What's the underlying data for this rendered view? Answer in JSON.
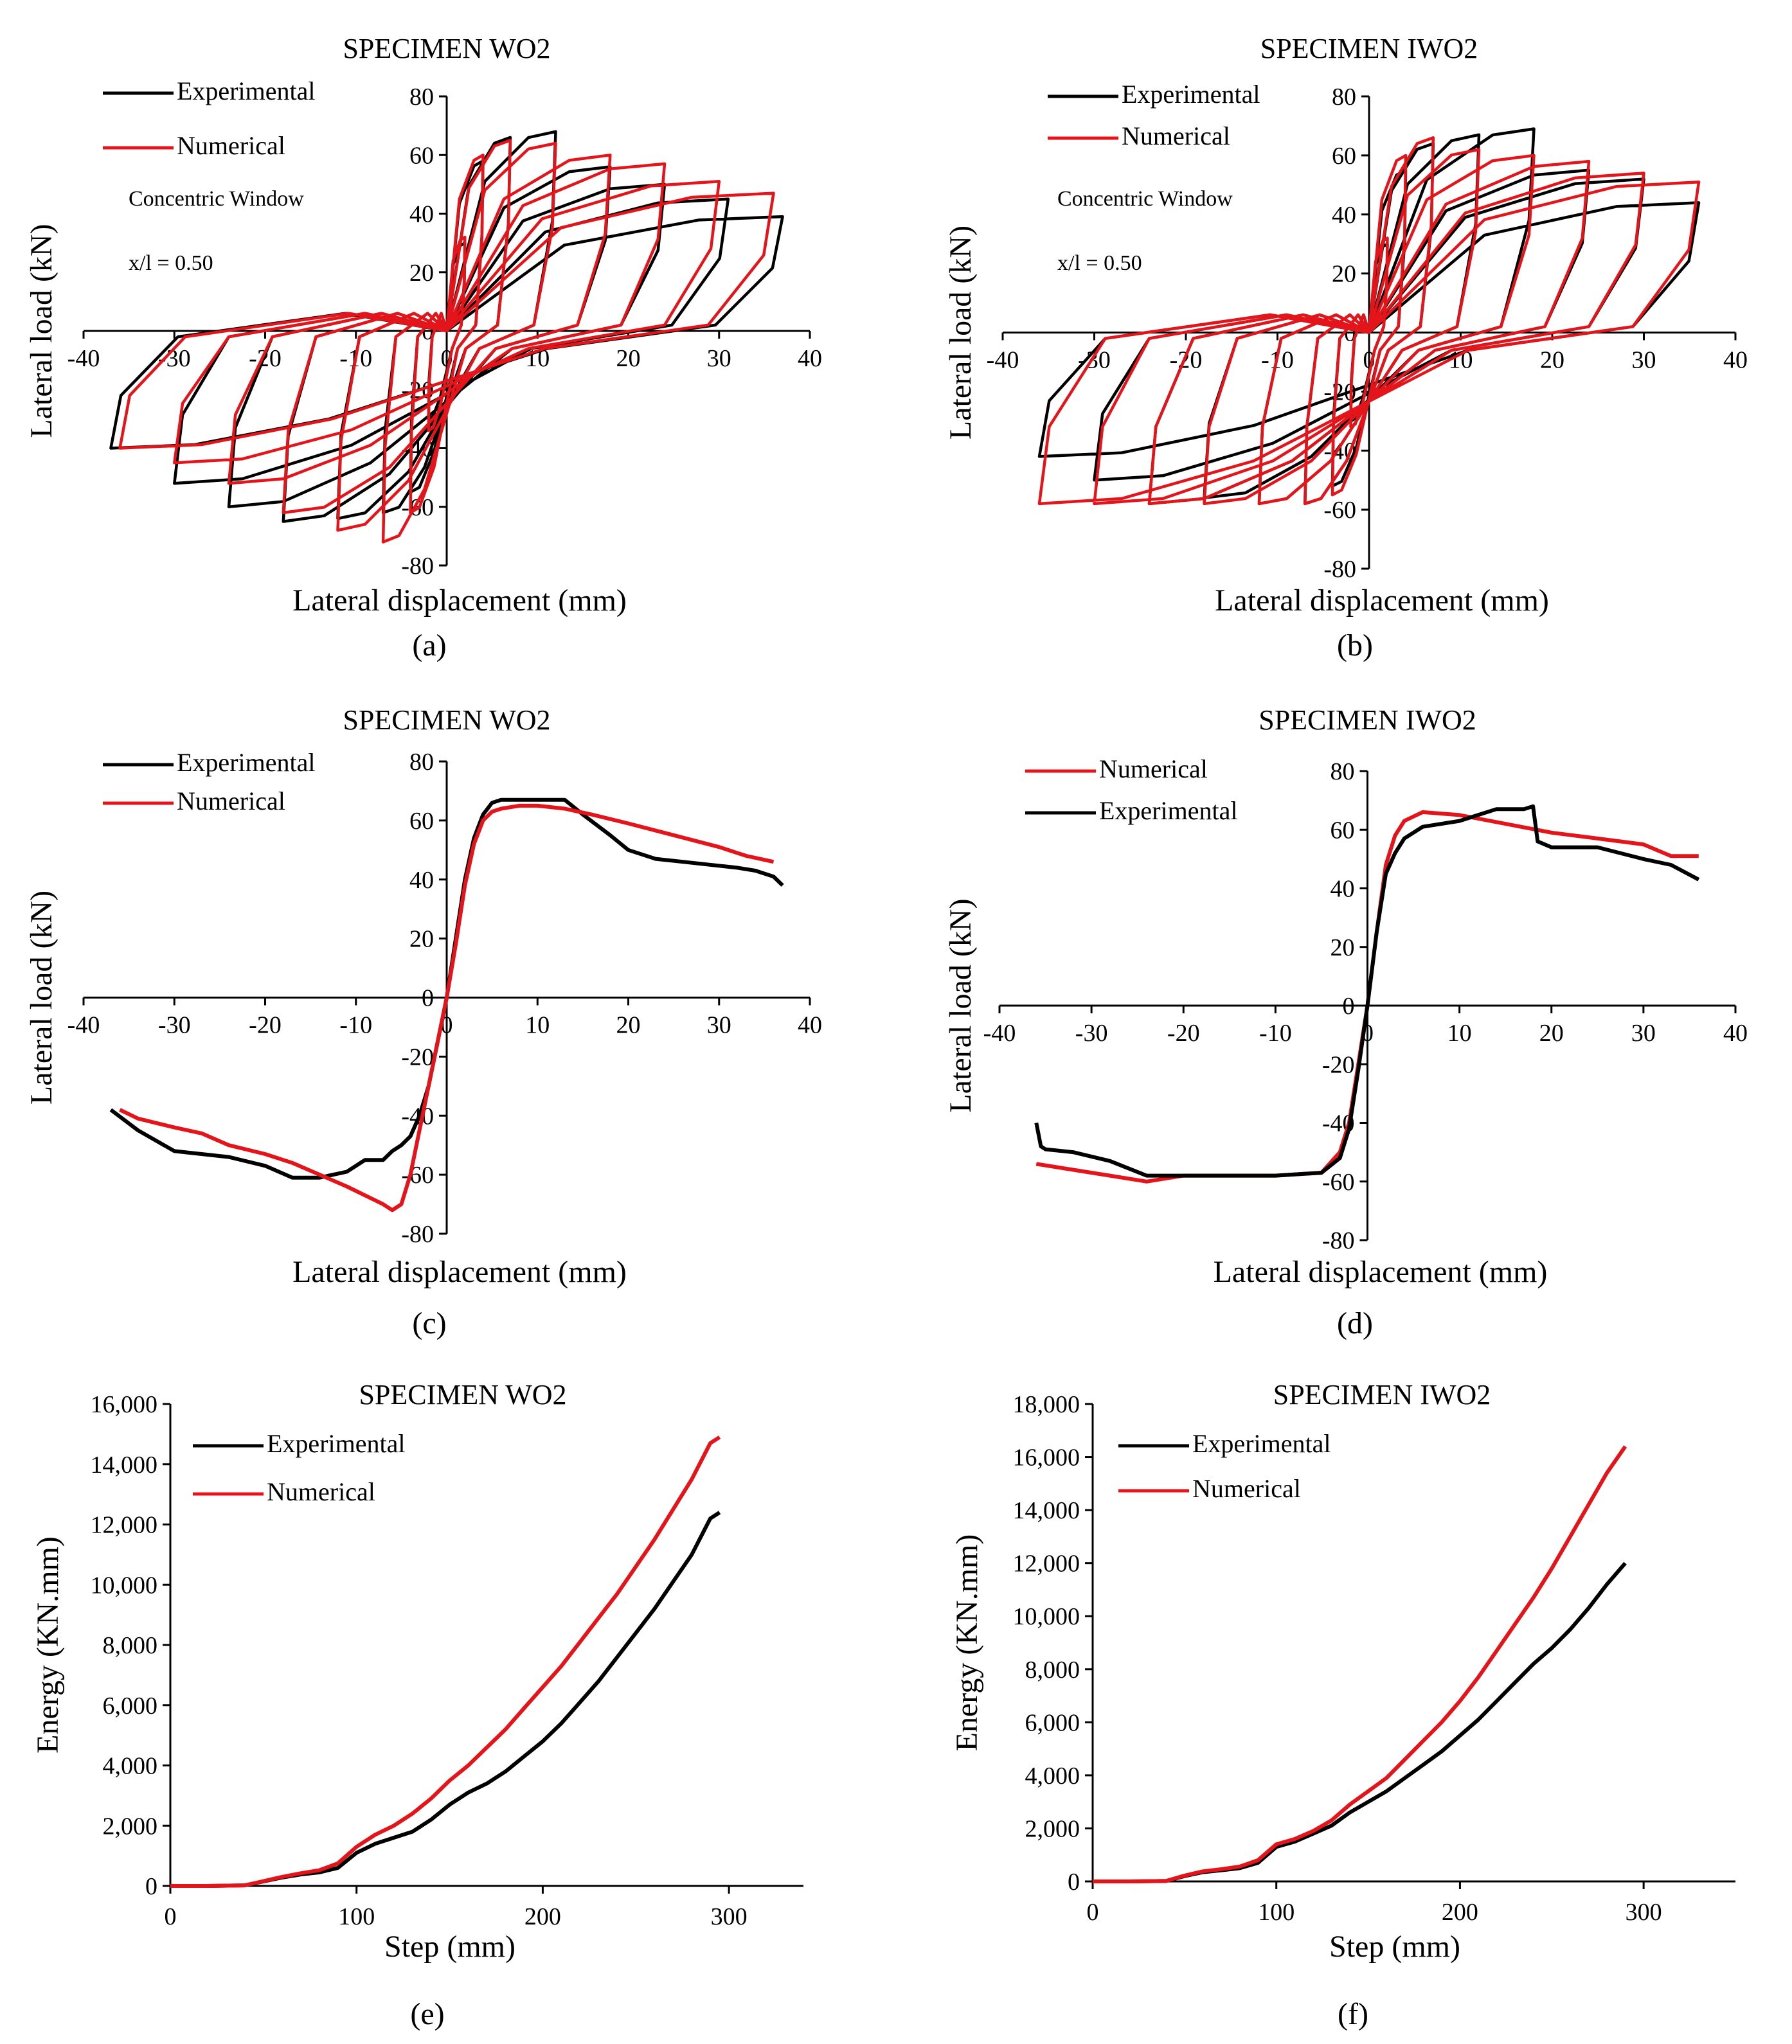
{
  "chart_data": [
    {
      "id": "a",
      "type": "line",
      "panel_label": "(a)",
      "title": "SPECIMEN WO2",
      "xlabel": "Lateral displacement (mm)",
      "ylabel": "Lateral load (kN)",
      "xlim": [
        -40,
        40
      ],
      "ylim": [
        -80,
        80
      ],
      "xticks": [
        -40,
        -30,
        -20,
        -10,
        0,
        10,
        20,
        30,
        40
      ],
      "yticks": [
        -80,
        -60,
        -40,
        -20,
        0,
        20,
        40,
        60,
        80
      ],
      "legend": [
        "Experimental",
        "Numerical"
      ],
      "annotations": [
        "Concentric Window",
        "x/l = 0.50"
      ],
      "series": [
        {
          "name": "Experimental",
          "color": "#000000",
          "kind": "hysteresis",
          "amplitudes_pos": [
            [
              2,
              30
            ],
            [
              4,
              58
            ],
            [
              7,
              66
            ],
            [
              12,
              68
            ],
            [
              18,
              56
            ],
            [
              24,
              50
            ],
            [
              31,
              45
            ],
            [
              37,
              39
            ]
          ],
          "amplitudes_neg": [
            [
              -2,
              -30
            ],
            [
              -4,
              -55
            ],
            [
              -7,
              -62
            ],
            [
              -12,
              -64
            ],
            [
              -18,
              -65
            ],
            [
              -24,
              -60
            ],
            [
              -30,
              -52
            ],
            [
              -37,
              -40
            ]
          ]
        },
        {
          "name": "Numerical",
          "color": "#e4141b",
          "kind": "hysteresis",
          "amplitudes_pos": [
            [
              2,
              32
            ],
            [
              4,
              60
            ],
            [
              7,
              65
            ],
            [
              12,
              64
            ],
            [
              18,
              60
            ],
            [
              24,
              57
            ],
            [
              30,
              51
            ],
            [
              36,
              47
            ]
          ],
          "amplitudes_neg": [
            [
              -2,
              -34
            ],
            [
              -4,
              -62
            ],
            [
              -7,
              -72
            ],
            [
              -12,
              -68
            ],
            [
              -18,
              -62
            ],
            [
              -24,
              -52
            ],
            [
              -30,
              -45
            ],
            [
              -36,
              -40
            ]
          ]
        }
      ]
    },
    {
      "id": "b",
      "type": "line",
      "panel_label": "(b)",
      "title": "SPECIMEN IWO2",
      "xlabel": "Lateral displacement (mm)",
      "ylabel": "Lateral load (kN)",
      "xlim": [
        -40,
        40
      ],
      "ylim": [
        -80,
        80
      ],
      "xticks": [
        -40,
        -30,
        -20,
        -10,
        0,
        10,
        20,
        30,
        40
      ],
      "yticks": [
        -80,
        -60,
        -40,
        -20,
        0,
        20,
        40,
        60,
        80
      ],
      "legend": [
        "Experimental",
        "Numerical"
      ],
      "annotations": [
        "Concentric Window",
        "x/l = 0.50"
      ],
      "series": [
        {
          "name": "Experimental",
          "color": "#000000",
          "kind": "hysteresis",
          "amplitudes_pos": [
            [
              2,
              30
            ],
            [
              4,
              55
            ],
            [
              7,
              64
            ],
            [
              12,
              67
            ],
            [
              18,
              69
            ],
            [
              24,
              55
            ],
            [
              30,
              52
            ],
            [
              36,
              44
            ]
          ],
          "amplitudes_neg": [
            [
              -2,
              -30
            ],
            [
              -4,
              -52
            ],
            [
              -7,
              -58
            ],
            [
              -12,
              -58
            ],
            [
              -18,
              -56
            ],
            [
              -24,
              -58
            ],
            [
              -30,
              -50
            ],
            [
              -36,
              -42
            ]
          ]
        },
        {
          "name": "Numerical",
          "color": "#e4141b",
          "kind": "hysteresis",
          "amplitudes_pos": [
            [
              2,
              32
            ],
            [
              4,
              60
            ],
            [
              7,
              66
            ],
            [
              12,
              62
            ],
            [
              18,
              60
            ],
            [
              24,
              58
            ],
            [
              30,
              54
            ],
            [
              36,
              51
            ]
          ],
          "amplitudes_neg": [
            [
              -2,
              -32
            ],
            [
              -4,
              -55
            ],
            [
              -7,
              -58
            ],
            [
              -12,
              -58
            ],
            [
              -18,
              -58
            ],
            [
              -24,
              -58
            ],
            [
              -30,
              -58
            ],
            [
              -36,
              -58
            ]
          ]
        }
      ]
    },
    {
      "id": "c",
      "type": "line",
      "panel_label": "(c)",
      "title": "SPECIMEN WO2",
      "xlabel": "Lateral displacement (mm)",
      "ylabel": "Lateral load (kN)",
      "xlim": [
        -40,
        40
      ],
      "ylim": [
        -80,
        80
      ],
      "xticks": [
        -40,
        -30,
        -20,
        -10,
        0,
        10,
        20,
        30,
        40
      ],
      "yticks": [
        -80,
        -60,
        -40,
        -20,
        0,
        20,
        40,
        60,
        80
      ],
      "legend": [
        "Experimental",
        "Numerical"
      ],
      "series": [
        {
          "name": "Experimental",
          "color": "#000000",
          "x": [
            -37,
            -34,
            -30,
            -27,
            -24,
            -20,
            -17,
            -14,
            -11,
            -9,
            -7,
            -6,
            -5,
            -4,
            -3,
            -2,
            -1,
            0,
            1,
            2,
            3,
            4,
            5,
            6,
            7,
            8,
            10,
            13,
            15,
            18,
            20,
            23,
            26,
            29,
            32,
            34,
            36,
            37
          ],
          "y": [
            -38,
            -45,
            -52,
            -53,
            -54,
            -57,
            -61,
            -61,
            -59,
            -55,
            -55,
            -52,
            -50,
            -47,
            -40,
            -30,
            -15,
            0,
            20,
            40,
            54,
            62,
            66,
            67,
            67,
            67,
            67,
            67,
            62,
            55,
            50,
            47,
            46,
            45,
            44,
            43,
            41,
            38
          ]
        },
        {
          "name": "Numerical",
          "color": "#e4141b",
          "x": [
            -36,
            -34,
            -30,
            -27,
            -24,
            -20,
            -17,
            -14,
            -11,
            -9,
            -7,
            -6,
            -5,
            -4,
            -3,
            -2,
            -1,
            0,
            1,
            2,
            3,
            4,
            5,
            6,
            8,
            10,
            13,
            16,
            20,
            25,
            30,
            33,
            36
          ],
          "y": [
            -38,
            -41,
            -44,
            -46,
            -50,
            -53,
            -56,
            -60,
            -64,
            -67,
            -70,
            -72,
            -70,
            -60,
            -45,
            -30,
            -15,
            0,
            18,
            38,
            52,
            60,
            63,
            64,
            65,
            65,
            64,
            62,
            59,
            55,
            51,
            48,
            46
          ]
        }
      ]
    },
    {
      "id": "d",
      "type": "line",
      "panel_label": "(d)",
      "title": "SPECIMEN IWO2",
      "xlabel": "Lateral displacement (mm)",
      "ylabel": "Lateral load (kN)",
      "xlim": [
        -40,
        40
      ],
      "ylim": [
        -80,
        80
      ],
      "xticks": [
        -40,
        -30,
        -20,
        -10,
        0,
        10,
        20,
        30,
        40
      ],
      "yticks": [
        -80,
        -60,
        -40,
        -20,
        0,
        20,
        40,
        60,
        80
      ],
      "legend": [
        "Numerical",
        "Experimental"
      ],
      "series": [
        {
          "name": "Numerical",
          "color": "#e4141b",
          "x": [
            -36,
            -32,
            -28,
            -24,
            -20,
            -15,
            -10,
            -5,
            -3,
            -2,
            -1,
            0,
            1,
            2,
            3,
            4,
            6,
            10,
            15,
            20,
            25,
            30,
            33,
            36
          ],
          "y": [
            -54,
            -56,
            -58,
            -60,
            -58,
            -58,
            -58,
            -57,
            -50,
            -40,
            -20,
            0,
            25,
            48,
            58,
            63,
            66,
            65,
            62,
            59,
            57,
            55,
            51,
            51
          ]
        },
        {
          "name": "Experimental",
          "color": "#000000",
          "x": [
            -36,
            -35.5,
            -35,
            -32,
            -28,
            -24,
            -20,
            -15,
            -10,
            -5,
            -3,
            -2,
            -1,
            0,
            1,
            2,
            3,
            4,
            6,
            10,
            14,
            17,
            18,
            18.5,
            20,
            25,
            30,
            33,
            36
          ],
          "y": [
            -40,
            -48,
            -49,
            -50,
            -53,
            -58,
            -58,
            -58,
            -58,
            -57,
            -52,
            -42,
            -22,
            0,
            25,
            45,
            52,
            57,
            61,
            63,
            67,
            67,
            68,
            56,
            54,
            54,
            50,
            48,
            43
          ]
        }
      ]
    },
    {
      "id": "e",
      "type": "line",
      "panel_label": "(e)",
      "title": "SPECIMEN WO2",
      "xlabel": "Step (mm)",
      "ylabel": "Energy (KN.mm)",
      "xlim": [
        0,
        340
      ],
      "ylim": [
        0,
        16000
      ],
      "xticks": [
        0,
        100,
        200,
        300
      ],
      "yticks": [
        0,
        2000,
        4000,
        6000,
        8000,
        10000,
        12000,
        14000,
        16000
      ],
      "ytick_labels": [
        "0",
        "2,000",
        "4,000",
        "6,000",
        "8,000",
        "10,000",
        "12,000",
        "14,000",
        "16,000"
      ],
      "legend": [
        "Experimental",
        "Numerical"
      ],
      "series": [
        {
          "name": "Experimental",
          "color": "#000000",
          "x": [
            0,
            20,
            40,
            50,
            60,
            70,
            80,
            90,
            100,
            110,
            120,
            130,
            140,
            150,
            160,
            170,
            180,
            190,
            200,
            210,
            220,
            230,
            240,
            250,
            260,
            270,
            280,
            290,
            295
          ],
          "y": [
            0,
            0,
            20,
            150,
            280,
            380,
            450,
            600,
            1100,
            1400,
            1600,
            1800,
            2200,
            2700,
            3100,
            3400,
            3800,
            4300,
            4800,
            5400,
            6100,
            6800,
            7600,
            8400,
            9200,
            10100,
            11000,
            12200,
            12400
          ]
        },
        {
          "name": "Numerical",
          "color": "#e4141b",
          "x": [
            0,
            20,
            40,
            50,
            60,
            70,
            80,
            90,
            100,
            110,
            120,
            130,
            140,
            150,
            160,
            170,
            180,
            190,
            200,
            210,
            220,
            230,
            240,
            250,
            260,
            270,
            280,
            290,
            295
          ],
          "y": [
            0,
            0,
            20,
            160,
            300,
            420,
            520,
            750,
            1300,
            1700,
            2000,
            2400,
            2900,
            3500,
            4000,
            4600,
            5200,
            5900,
            6600,
            7300,
            8100,
            8900,
            9700,
            10600,
            11500,
            12500,
            13500,
            14700,
            14900
          ]
        }
      ]
    },
    {
      "id": "f",
      "type": "line",
      "panel_label": "(f)",
      "title": "SPECIMEN IWO2",
      "xlabel": "Step (mm)",
      "ylabel": "Energy (KN.mm)",
      "xlim": [
        0,
        350
      ],
      "ylim": [
        0,
        18000
      ],
      "xticks": [
        0,
        100,
        200,
        300
      ],
      "yticks": [
        0,
        2000,
        4000,
        6000,
        8000,
        10000,
        12000,
        14000,
        16000,
        18000
      ],
      "ytick_labels": [
        "0",
        "2,000",
        "4,000",
        "6,000",
        "8,000",
        "10,000",
        "12,000",
        "14,000",
        "16,000",
        "18,000"
      ],
      "legend": [
        "Experimental",
        "Numerical"
      ],
      "series": [
        {
          "name": "Experimental",
          "color": "#000000",
          "x": [
            0,
            20,
            40,
            50,
            60,
            70,
            80,
            90,
            100,
            110,
            120,
            130,
            140,
            150,
            160,
            170,
            180,
            190,
            200,
            210,
            220,
            230,
            240,
            250,
            260,
            270,
            280,
            290
          ],
          "y": [
            0,
            0,
            20,
            200,
            350,
            420,
            500,
            700,
            1300,
            1500,
            1800,
            2100,
            2600,
            3000,
            3400,
            3900,
            4400,
            4900,
            5500,
            6100,
            6800,
            7500,
            8200,
            8800,
            9500,
            10300,
            11200,
            12000
          ]
        },
        {
          "name": "Numerical",
          "color": "#e4141b",
          "x": [
            0,
            20,
            40,
            50,
            60,
            70,
            80,
            90,
            100,
            110,
            120,
            130,
            140,
            150,
            160,
            170,
            180,
            190,
            200,
            210,
            220,
            230,
            240,
            250,
            260,
            270,
            280,
            290
          ],
          "y": [
            0,
            0,
            20,
            220,
            380,
            460,
            560,
            800,
            1400,
            1600,
            1900,
            2300,
            2900,
            3400,
            3900,
            4600,
            5300,
            6000,
            6800,
            7700,
            8700,
            9700,
            10700,
            11800,
            13000,
            14200,
            15400,
            16400
          ]
        }
      ]
    }
  ]
}
